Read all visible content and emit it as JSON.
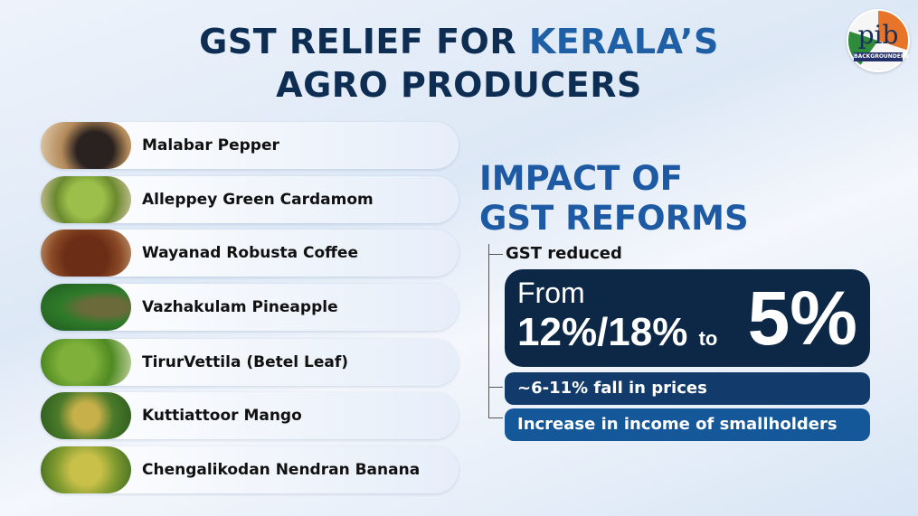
{
  "title": {
    "line1_part1": "GST RELIEF FOR ",
    "line1_highlight": "KERALA’S",
    "line2": "AGRO PRODUCERS"
  },
  "logo": {
    "text": "pib",
    "band": "BACKGROUNDERS"
  },
  "products": [
    {
      "label": "Malabar Pepper",
      "image": "pepper"
    },
    {
      "label": "Alleppey Green Cardamom",
      "image": "cardamom"
    },
    {
      "label": "Wayanad Robusta Coffee",
      "image": "coffee"
    },
    {
      "label": "Vazhakulam Pineapple",
      "image": "pineapple"
    },
    {
      "label": "TirurVettila (Betel Leaf)",
      "image": "betel-leaf"
    },
    {
      "label": "Kuttiattoor Mango",
      "image": "mango"
    },
    {
      "label": "Chengalikodan Nendran Banana",
      "image": "banana"
    }
  ],
  "impact": {
    "heading1": "IMPACT OF",
    "heading2": "GST REFORMS",
    "gst_reduced": "GST reduced",
    "from": "From",
    "old_rate": "12%/18%",
    "to": "to",
    "new_rate": "5%",
    "points": [
      "~6-11% fall in prices",
      "Increase in income of smallholders"
    ]
  },
  "colors": {
    "title": "#0e2d52",
    "accent": "#1f5fa6",
    "dark_box": "#0d2847",
    "bar1": "#123a6b",
    "bar2": "#14589a"
  }
}
